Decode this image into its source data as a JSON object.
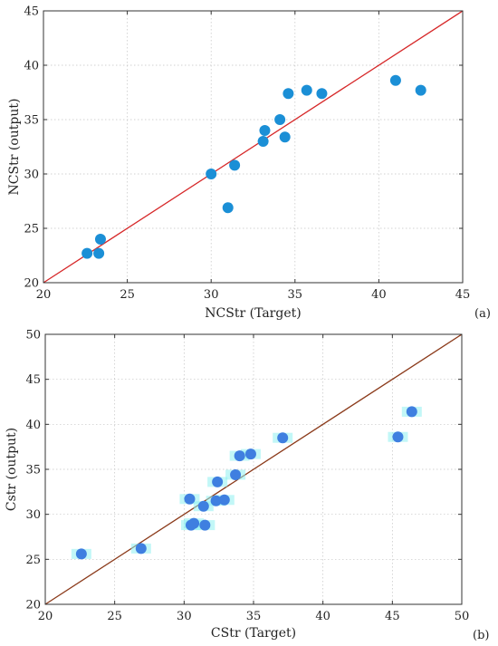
{
  "chart_data": [
    {
      "type": "scatter",
      "panel_label": "(a)",
      "xlabel": "NCStr (Target)",
      "ylabel": "NCStr (output)",
      "xlim": [
        20,
        45
      ],
      "ylim": [
        20,
        45
      ],
      "xticks": [
        20,
        25,
        30,
        35,
        40,
        45
      ],
      "yticks": [
        20,
        25,
        30,
        35,
        40,
        45
      ],
      "grid": true,
      "reference_line": {
        "from": [
          20,
          20
        ],
        "to": [
          45,
          45
        ],
        "color": "#d62728"
      },
      "marker_color": "#1b8fd6",
      "points": [
        {
          "x": 22.6,
          "y": 22.7
        },
        {
          "x": 23.3,
          "y": 22.7
        },
        {
          "x": 23.4,
          "y": 24.0
        },
        {
          "x": 30.0,
          "y": 30.0
        },
        {
          "x": 31.0,
          "y": 26.9
        },
        {
          "x": 31.4,
          "y": 30.8
        },
        {
          "x": 33.1,
          "y": 33.0
        },
        {
          "x": 33.2,
          "y": 34.0
        },
        {
          "x": 34.1,
          "y": 35.0
        },
        {
          "x": 34.4,
          "y": 33.4
        },
        {
          "x": 34.6,
          "y": 37.4
        },
        {
          "x": 35.7,
          "y": 37.7
        },
        {
          "x": 36.6,
          "y": 37.4
        },
        {
          "x": 41.0,
          "y": 38.6
        },
        {
          "x": 42.5,
          "y": 37.7
        }
      ]
    },
    {
      "type": "scatter",
      "panel_label": "(b)",
      "xlabel": "CStr (Target)",
      "ylabel": "Cstr (output)",
      "xlim": [
        20,
        50
      ],
      "ylim": [
        20,
        50
      ],
      "xticks": [
        20,
        25,
        30,
        35,
        40,
        45,
        50
      ],
      "yticks": [
        20,
        25,
        30,
        35,
        40,
        45,
        50
      ],
      "grid": true,
      "reference_line": {
        "from": [
          20,
          20
        ],
        "to": [
          50,
          50
        ],
        "color": "#8b3a1a"
      },
      "marker_color": "#3f7fe0",
      "highlight_color": "#8ff0f0",
      "points": [
        {
          "x": 22.6,
          "y": 25.6
        },
        {
          "x": 26.9,
          "y": 26.2
        },
        {
          "x": 30.4,
          "y": 31.7
        },
        {
          "x": 30.5,
          "y": 28.8
        },
        {
          "x": 30.7,
          "y": 29.0
        },
        {
          "x": 31.4,
          "y": 30.9
        },
        {
          "x": 31.5,
          "y": 28.8
        },
        {
          "x": 32.3,
          "y": 31.5
        },
        {
          "x": 32.4,
          "y": 33.6
        },
        {
          "x": 32.9,
          "y": 31.6
        },
        {
          "x": 33.7,
          "y": 34.4
        },
        {
          "x": 34.0,
          "y": 36.5
        },
        {
          "x": 34.8,
          "y": 36.7
        },
        {
          "x": 37.1,
          "y": 38.5
        },
        {
          "x": 45.4,
          "y": 38.6
        },
        {
          "x": 46.4,
          "y": 41.4
        }
      ]
    }
  ]
}
